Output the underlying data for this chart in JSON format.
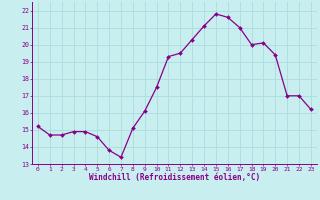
{
  "x": [
    0,
    1,
    2,
    3,
    4,
    5,
    6,
    7,
    8,
    9,
    10,
    11,
    12,
    13,
    14,
    15,
    16,
    17,
    18,
    19,
    20,
    21,
    22,
    23
  ],
  "y": [
    15.2,
    14.7,
    14.7,
    14.9,
    14.9,
    14.6,
    13.8,
    13.4,
    15.1,
    16.1,
    17.5,
    19.3,
    19.5,
    20.3,
    21.1,
    21.8,
    21.6,
    21.0,
    20.0,
    20.1,
    19.4,
    17.0,
    17.0,
    16.2
  ],
  "line_color": "#880088",
  "marker_color": "#880088",
  "bg_color": "#C8EEF0",
  "grid_color": "#AADDDD",
  "xlabel": "Windchill (Refroidissement éolien,°C)",
  "xlabel_color": "#880088",
  "tick_color": "#880088",
  "ylim": [
    13,
    22.5
  ],
  "xlim": [
    -0.5,
    23.5
  ],
  "yticks": [
    13,
    14,
    15,
    16,
    17,
    18,
    19,
    20,
    21,
    22
  ],
  "xticks": [
    0,
    1,
    2,
    3,
    4,
    5,
    6,
    7,
    8,
    9,
    10,
    11,
    12,
    13,
    14,
    15,
    16,
    17,
    18,
    19,
    20,
    21,
    22,
    23
  ],
  "font_family": "monospace"
}
